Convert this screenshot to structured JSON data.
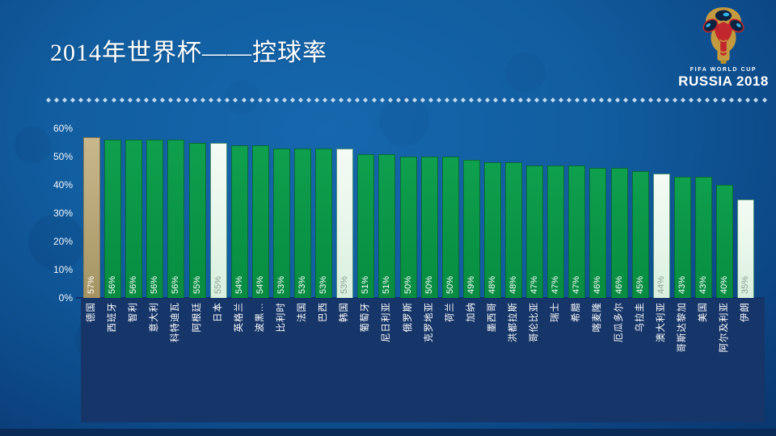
{
  "slide": {
    "title": "2014年世界杯——控球率",
    "logo": {
      "line1": "FIFA WORLD CUP",
      "line2": "RUSSIA 2018"
    }
  },
  "chart_data": {
    "type": "bar",
    "title": "2014年世界杯——控球率",
    "ylim": [
      0,
      60
    ],
    "yticks": [
      "0%",
      "10%",
      "20%",
      "30%",
      "40%",
      "50%",
      "60%"
    ],
    "grid": false,
    "legend": "none",
    "bar_value_suffix": "%",
    "categories": [
      "德国",
      "西班牙",
      "智利",
      "意大利",
      "科特迪瓦",
      "阿根廷",
      "日本",
      "英格兰",
      "波黑…",
      "比利时",
      "法国",
      "巴西",
      "韩国",
      "葡萄牙",
      "尼日利亚",
      "俄罗斯",
      "克罗地亚",
      "荷兰",
      "加纳",
      "墨西哥",
      "洪都拉斯",
      "哥伦比亚",
      "瑞士",
      "希腊",
      "喀麦隆",
      "厄瓜多尔",
      "乌拉圭",
      "澳大利亚",
      "哥斯达黎加",
      "美国",
      "阿尔及利亚",
      "伊朗"
    ],
    "values": [
      57,
      56,
      56,
      56,
      56,
      55,
      55,
      54,
      54,
      53,
      53,
      53,
      53,
      51,
      51,
      50,
      50,
      50,
      49,
      48,
      48,
      47,
      47,
      47,
      46,
      46,
      45,
      44,
      43,
      43,
      40,
      35
    ],
    "highlights": {
      "champion_index": 0,
      "afc_indices": [
        6,
        12,
        27,
        31
      ]
    },
    "colors": {
      "bar_default": "#0a9446",
      "bar_champion": "#b7a778",
      "bar_afc": "#e9f7ec",
      "value_label": "#ffffff",
      "value_label_on_light": "#8ba295",
      "panel": "#163569",
      "background_center": "#1667ae",
      "background_edge": "#093264",
      "divider_dot": "#c7dcee"
    }
  }
}
